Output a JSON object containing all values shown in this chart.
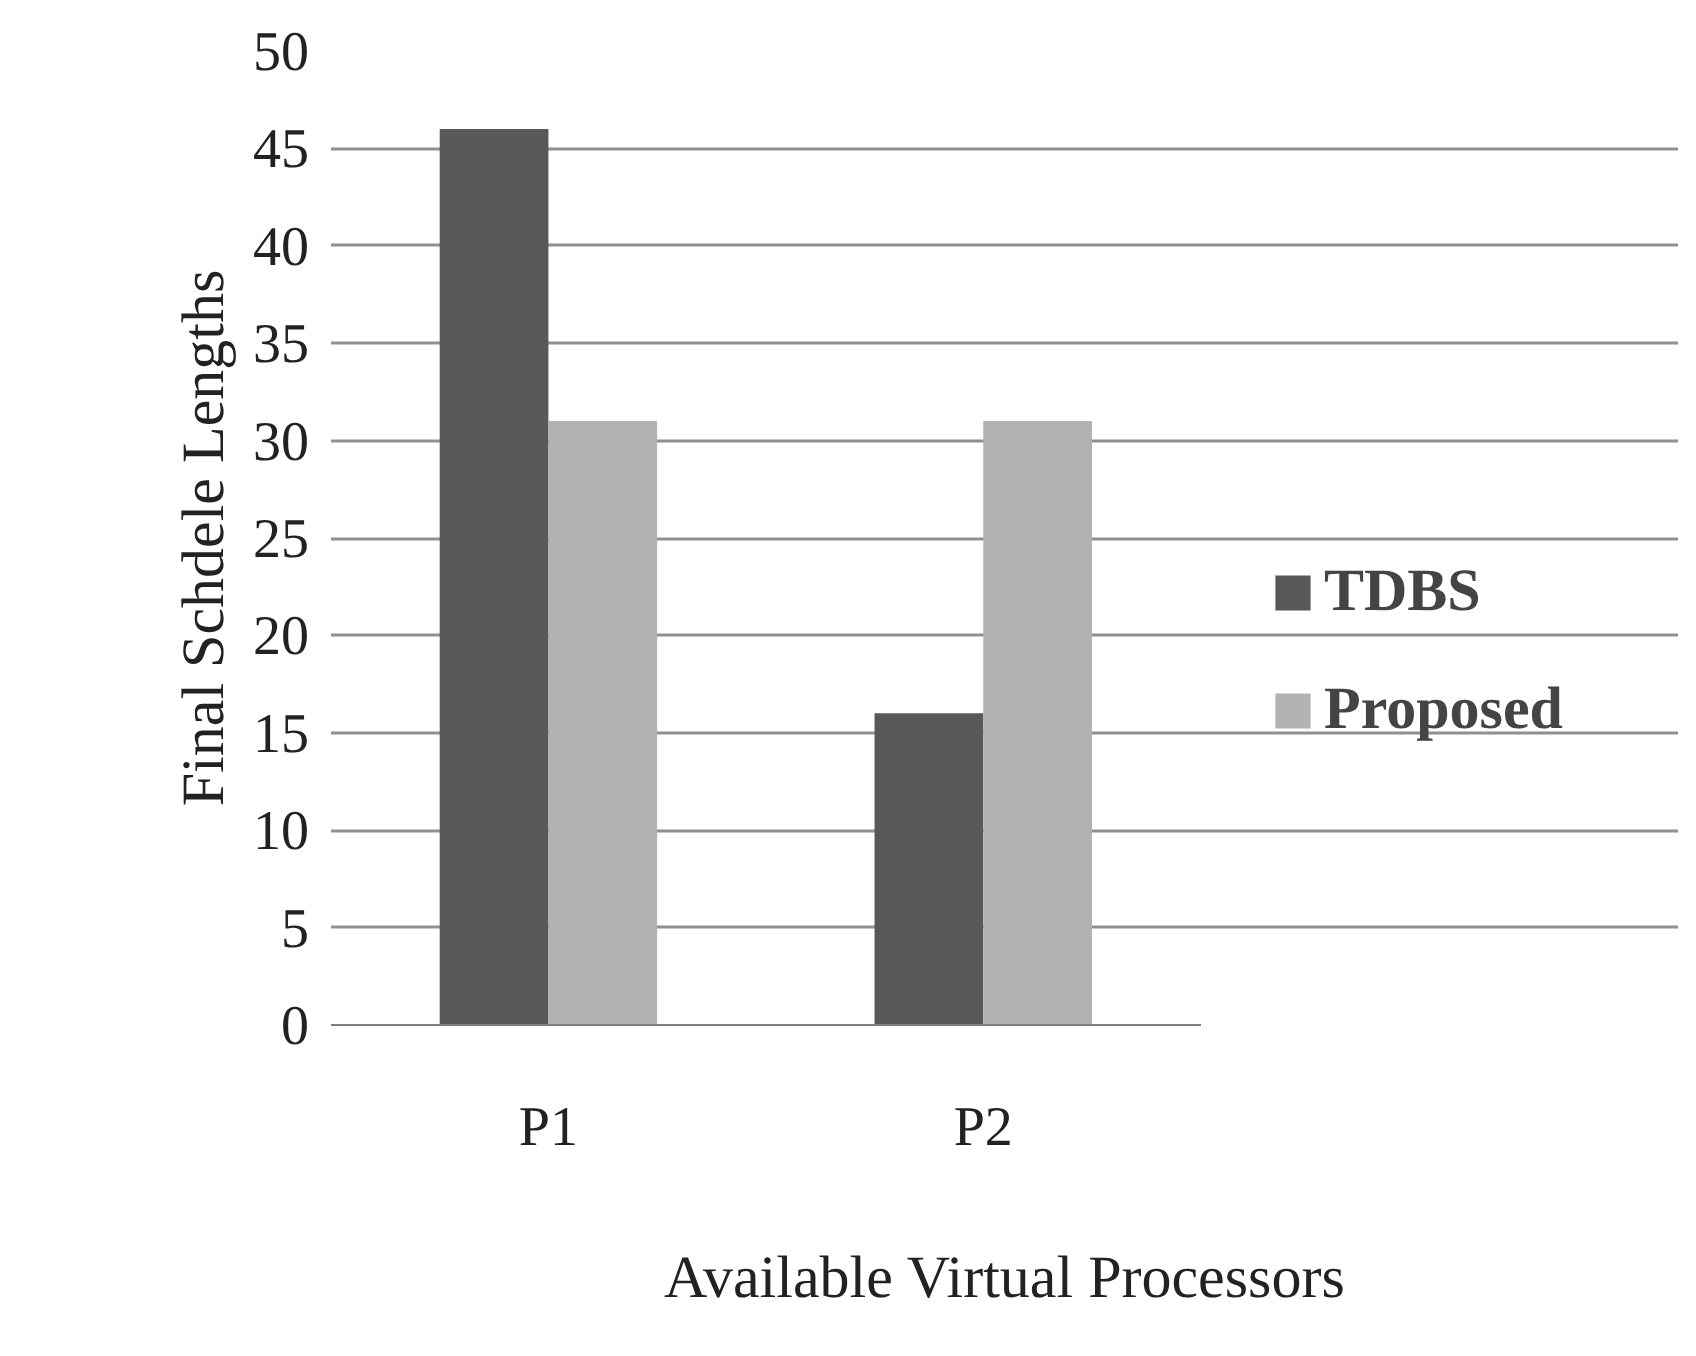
{
  "chart_data": {
    "type": "bar",
    "xlabel": "Available Virtual Processors",
    "ylabel": "Final Schdele Lengths",
    "categories": [
      "P1",
      "P2"
    ],
    "series": [
      {
        "name": "TDBS",
        "color": "#595959",
        "values": [
          46,
          16
        ]
      },
      {
        "name": "Proposed",
        "color": "#b2b2b2",
        "values": [
          31,
          31
        ]
      }
    ],
    "ylim": [
      0,
      50
    ],
    "yticks": [
      0,
      5,
      10,
      15,
      20,
      25,
      30,
      35,
      40,
      45,
      50
    ],
    "grid": "y",
    "legend": "right"
  }
}
